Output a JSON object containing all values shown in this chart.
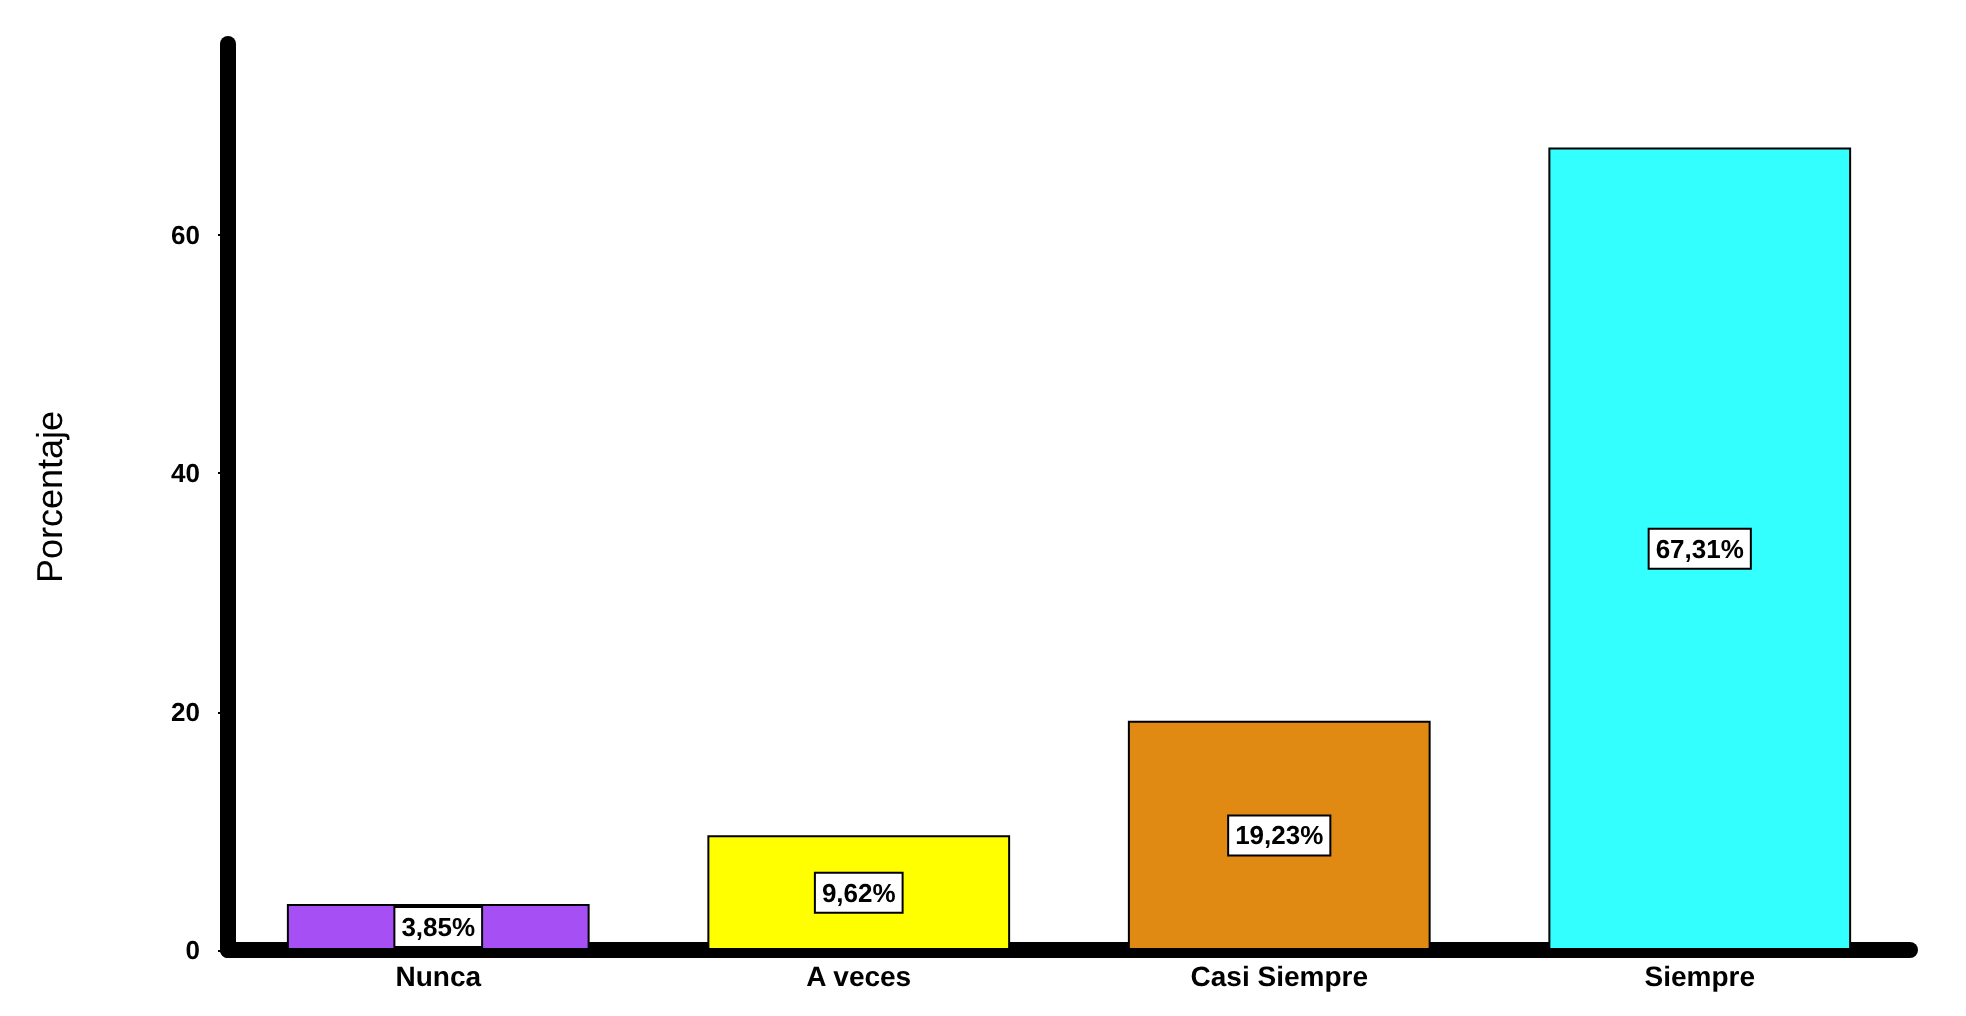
{
  "chart_data": {
    "type": "bar",
    "ylabel": "Porcentaje",
    "categories": [
      "Nunca",
      "A veces",
      "Casi Siempre",
      "Siempre"
    ],
    "values": [
      3.85,
      9.62,
      19.23,
      67.31
    ],
    "colors": [
      "#a64ff5",
      "#ffff00",
      "#e08a14",
      "#33ffff"
    ],
    "value_labels": [
      "3,85%",
      "9,62%",
      "19,23%",
      "67,31%"
    ],
    "ylim": [
      0,
      76
    ],
    "yticks": [
      0,
      20,
      40,
      60
    ]
  }
}
